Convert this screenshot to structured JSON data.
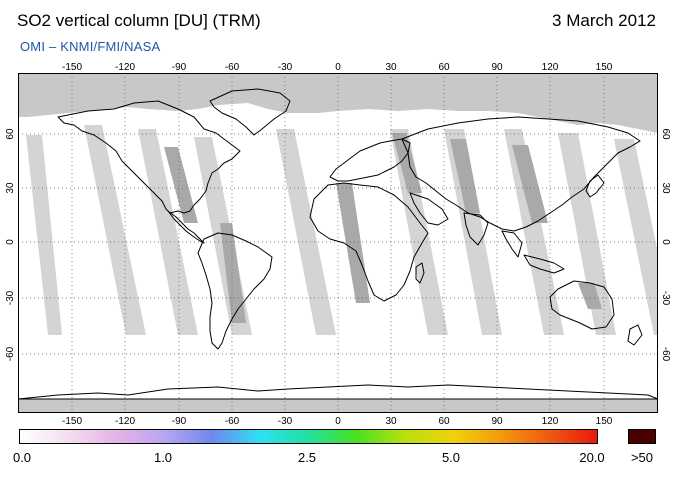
{
  "header": {
    "title": "SO2 vertical column [DU] (TRM)",
    "date": "3 March 2012",
    "credit": "OMI  –  KNMI/FMI/NASA"
  },
  "axes": {
    "lon_ticks": [
      "-150",
      "-120",
      "-90",
      "-60",
      "-30",
      "0",
      "30",
      "60",
      "90",
      "120",
      "150"
    ],
    "lat_ticks": [
      "60",
      "30",
      "0",
      "-30",
      "-60"
    ]
  },
  "colorbar": {
    "labels": [
      "0.0",
      "1.0",
      "2.5",
      "5.0",
      "20.0"
    ],
    "max_label": ">50",
    "colors": [
      "#ffffff",
      "#f3dff0",
      "#e6b2e6",
      "#b8a6f0",
      "#6f88ee",
      "#2fe0f2",
      "#22e0a0",
      "#4be020",
      "#b8e010",
      "#f0d20a",
      "#f39a0e",
      "#ee5a12",
      "#e81a0a"
    ],
    "max_color": "#4a0000"
  },
  "map": {
    "land_outline_color": "#000000",
    "ocean_color": "#ffffff",
    "no_data_color": "#c8c8c8",
    "swath_color_light": "#d2d2d2",
    "swath_color_dark": "#a8a8a8"
  }
}
